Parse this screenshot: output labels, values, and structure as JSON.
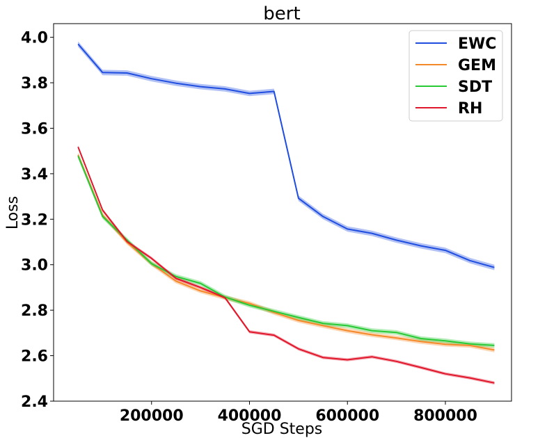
{
  "chart_data": {
    "type": "line",
    "title": "bert",
    "xlabel": "SGD Steps",
    "ylabel": "Loss",
    "xlim": [
      0,
      935000
    ],
    "ylim": [
      2.4,
      4.06
    ],
    "xticks": [
      200000,
      400000,
      600000,
      800000
    ],
    "yticks": [
      2.4,
      2.6,
      2.8,
      3.0,
      3.2,
      3.4,
      3.6,
      3.8,
      4.0
    ],
    "x": [
      50000,
      100000,
      150000,
      200000,
      250000,
      300000,
      350000,
      400000,
      450000,
      500000,
      550000,
      600000,
      650000,
      700000,
      750000,
      800000,
      850000,
      900000
    ],
    "legend_position": "top-right",
    "grid": false,
    "band_opacity": 0.35,
    "series": [
      {
        "name": "EWC",
        "color": "#1f4de0",
        "values": [
          3.97,
          3.845,
          3.843,
          3.818,
          3.798,
          3.783,
          3.773,
          3.753,
          3.762,
          3.292,
          3.212,
          3.157,
          3.138,
          3.108,
          3.083,
          3.063,
          3.018,
          2.988
        ],
        "band": 0.012
      },
      {
        "name": "GEM",
        "color": "#f5892a",
        "values": [
          3.483,
          3.218,
          3.098,
          3.005,
          2.928,
          2.885,
          2.855,
          2.83,
          2.79,
          2.755,
          2.732,
          2.71,
          2.692,
          2.678,
          2.662,
          2.65,
          2.645,
          2.625
        ],
        "band": 0.01
      },
      {
        "name": "SDT",
        "color": "#27c934",
        "values": [
          3.478,
          3.212,
          3.108,
          3.005,
          2.948,
          2.918,
          2.858,
          2.822,
          2.795,
          2.768,
          2.742,
          2.732,
          2.71,
          2.702,
          2.675,
          2.665,
          2.652,
          2.645
        ],
        "band": 0.01
      },
      {
        "name": "RH",
        "color": "#e0162b",
        "values": [
          3.518,
          3.24,
          3.102,
          3.028,
          2.94,
          2.9,
          2.855,
          2.705,
          2.69,
          2.63,
          2.592,
          2.582,
          2.595,
          2.575,
          2.548,
          2.52,
          2.502,
          2.48
        ],
        "band": 0.007
      }
    ]
  }
}
